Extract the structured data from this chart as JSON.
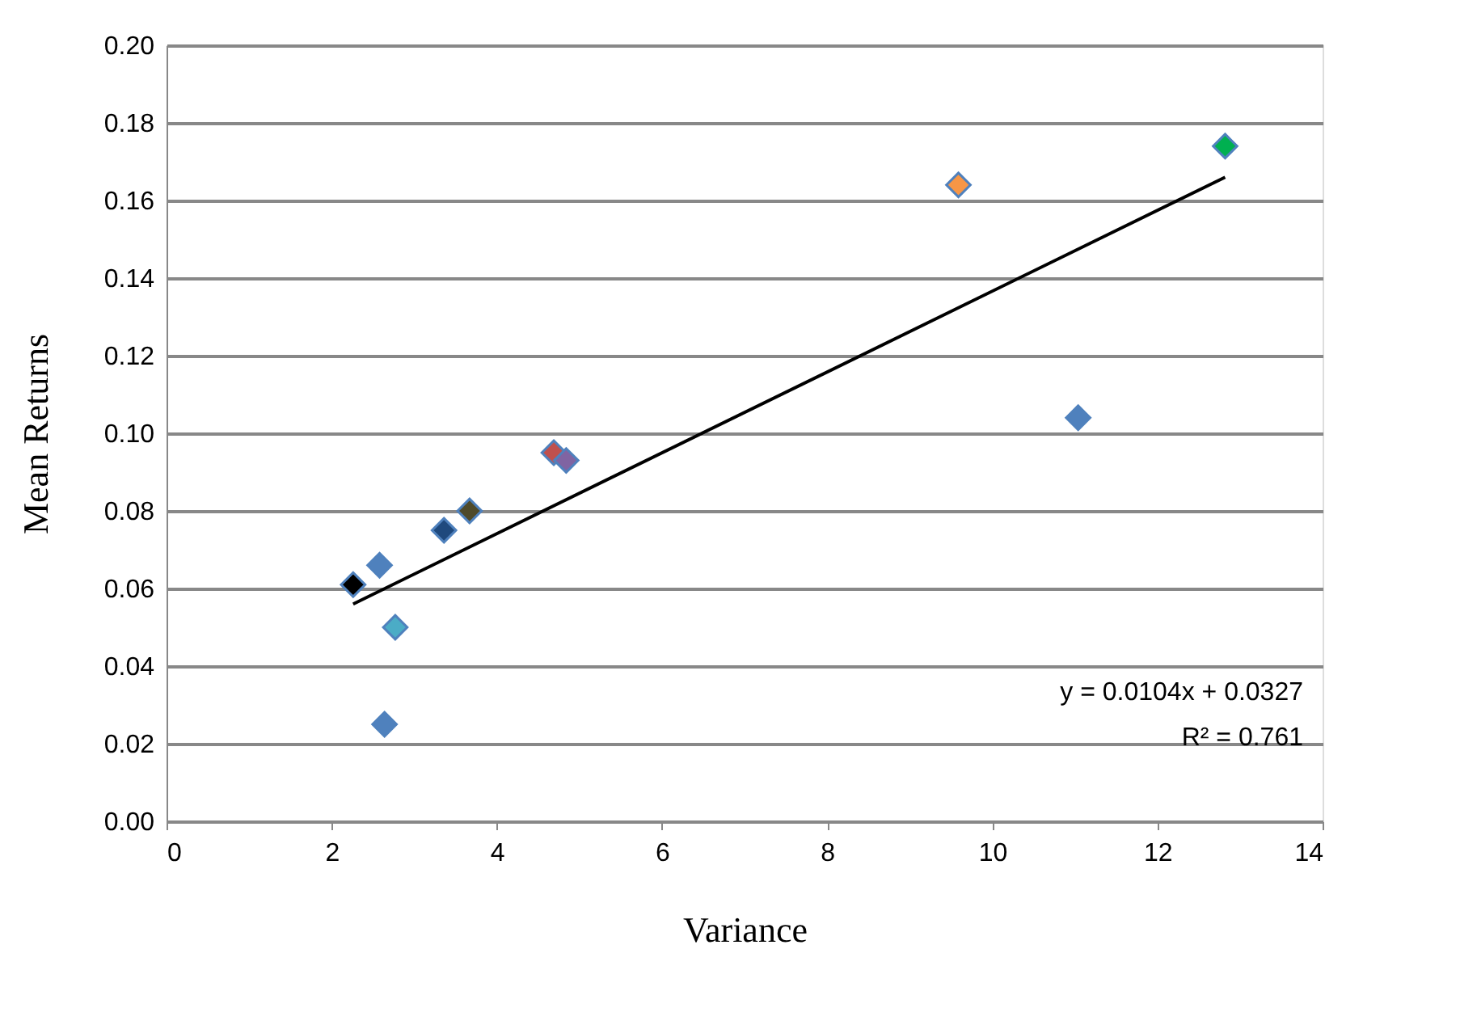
{
  "chart_data": {
    "type": "scatter",
    "xlabel": "Variance",
    "ylabel": "Mean Returns",
    "x": [
      2.26,
      2.58,
      2.77,
      2.64,
      3.36,
      3.67,
      4.69,
      4.84,
      9.59,
      11.04,
      12.82
    ],
    "series": [
      {
        "values": [
          0.061,
          0.066,
          0.05,
          0.025,
          0.075,
          0.08,
          0.095,
          0.093,
          0.164,
          0.104,
          0.174
        ],
        "colors": [
          "#000000",
          "#4f81bd",
          "#4bacc6",
          "#4f81bd",
          "#1f497d",
          "#4f4a2a",
          "#c0504d",
          "#8064a2",
          "#f79646",
          "#4f81bd",
          "#00b050"
        ],
        "marker": "diamond"
      },
      {
        "type": "line",
        "x": [
          2.26,
          12.82
        ],
        "values": [
          0.056,
          0.166
        ],
        "color": "#000000",
        "line_style": "solid"
      }
    ],
    "xlim": [
      0,
      14
    ],
    "xticks": [
      0,
      2,
      4,
      6,
      8,
      10,
      12,
      14
    ],
    "ylim": [
      0,
      0.2
    ],
    "yticks": [
      {
        "value": 0,
        "label": "0.00"
      },
      {
        "value": 0.02,
        "label": "0.02"
      },
      {
        "value": 0.04,
        "label": "0.04"
      },
      {
        "value": 0.06,
        "label": "0.06"
      },
      {
        "value": 0.08,
        "label": "0.08"
      },
      {
        "value": 0.1,
        "label": "0.10"
      },
      {
        "value": 0.12,
        "label": "0.12"
      },
      {
        "value": 0.14,
        "label": "0.14"
      },
      {
        "value": 0.16,
        "label": "0.16"
      },
      {
        "value": 0.18,
        "label": "0.18"
      },
      {
        "value": 0.2,
        "label": "0.20"
      }
    ],
    "grid": "y",
    "annotations": [
      "y = 0.0104x + 0.0327",
      "R² = 0.761"
    ]
  }
}
